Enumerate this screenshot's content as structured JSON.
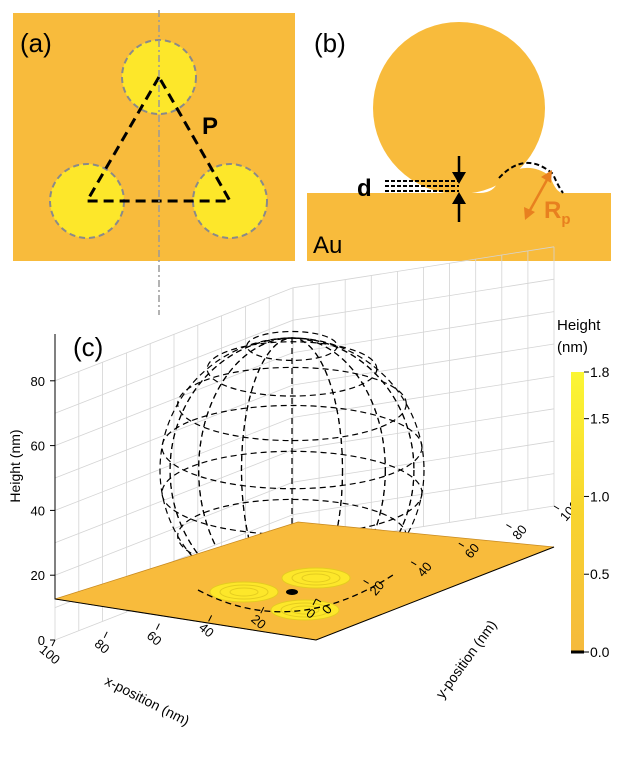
{
  "panel_a": {
    "label": "(a)",
    "period_label": "P"
  },
  "panel_b": {
    "label": "(b)",
    "gap_label": "d",
    "material_label": "Au",
    "radius_label": "R",
    "radius_sub": "p"
  },
  "panel_c": {
    "label": "(c)",
    "z_axis_title": "Height (nm)",
    "x_axis_title": "x-position (nm)",
    "y_axis_title": "y-position (nm)",
    "z_ticks": [
      "0",
      "20",
      "40",
      "60",
      "80"
    ],
    "x_ticks": [
      "0",
      "20",
      "40",
      "60",
      "80",
      "100"
    ],
    "y_ticks": [
      "0",
      "20",
      "40",
      "60",
      "80",
      "100"
    ],
    "colorbar": {
      "title_line1": "Height",
      "title_line2": "(nm)",
      "ticks": [
        "1.8",
        "1.5",
        "1.0",
        "0.5",
        "0.0"
      ]
    }
  },
  "colors": {
    "gold": "#f8bb3c",
    "bump": "#fde72a",
    "contour": "#e4cc20",
    "ink": "#000000",
    "arrow": "#e8801f"
  }
}
